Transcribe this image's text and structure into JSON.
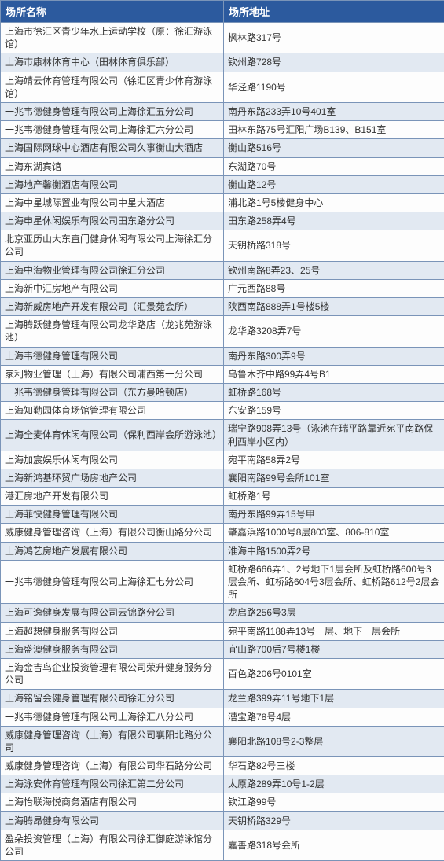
{
  "table": {
    "columns": [
      "场所名称",
      "场所地址"
    ],
    "rows": [
      [
        "上海市徐汇区青少年水上运动学校（原：徐汇游泳馆）",
        "枫林路317号"
      ],
      [
        "上海市康林体育中心（田林体育俱乐部）",
        "钦州路728号"
      ],
      [
        "上海靖云体育管理有限公司（徐汇区青少体育游泳馆）",
        "华泾路1190号"
      ],
      [
        "一兆韦德健身管理有限公司上海徐汇五分公司",
        "南丹东路233弄10号401室"
      ],
      [
        "一兆韦德健身管理有限公司上海徐汇六分公司",
        "田林东路75号汇阳广场B139、B151室"
      ],
      [
        "上海国际网球中心酒店有限公司久事衡山大酒店",
        "衡山路516号"
      ],
      [
        "上海东湖宾馆",
        "东湖路70号"
      ],
      [
        "上海地产馨衡酒店有限公司",
        "衡山路12号"
      ],
      [
        "上海中星城际置业有限公司中星大酒店",
        "浦北路1号5楼健身中心"
      ],
      [
        "上海申星休闲娱乐有限公司田东路分公司",
        "田东路258弄4号"
      ],
      [
        "北京亚历山大东直门健身休闲有限公司上海徐汇分公司",
        "天钥桥路318号"
      ],
      [
        "上海中海物业管理有限公司徐汇分公司",
        "钦州南路8弄23、25号"
      ],
      [
        "上海新中汇房地产有限公司",
        "广元西路88号"
      ],
      [
        "上海新威房地产开发有限公司（汇景苑会所）",
        "陕西南路888弄1号楼5楼"
      ],
      [
        "上海腾跃健身管理有限公司龙华路店（龙兆苑游泳池）",
        "龙华路3208弄7号"
      ],
      [
        "上海韦德健身管理有限公司",
        "南丹东路300弄9号"
      ],
      [
        "家利物业管理（上海）有限公司浦西第一分公司",
        "乌鲁木齐中路99弄4号B1"
      ],
      [
        "一兆韦德健身管理有限公司（东方曼哈顿店）",
        "虹桥路168号"
      ],
      [
        "上海知勤园体育场馆管理有限公司",
        "东安路159号"
      ],
      [
        "上海全麦体育休闲有限公司（保利西岸会所游泳池）",
        "瑞宁路908弄13号（泳池在瑞平路靠近宛平南路保利西岸小区内）"
      ],
      [
        "上海加宸娱乐休闲有限公司",
        "宛平南路58弄2号"
      ],
      [
        "上海新鸿基环贸广场房地产公司",
        "襄阳南路99号会所101室"
      ],
      [
        "港汇房地产开发有限公司",
        "虹桥路1号"
      ],
      [
        "上海菲快健身管理有限公司",
        "南丹东路99弄15号甲"
      ],
      [
        "威康健身管理咨询（上海）有限公司衡山路分公司",
        "肇嘉浜路1000号8层803室、806-810室"
      ],
      [
        "上海鸿艺房地产发展有限公司",
        "淮海中路1500弄2号"
      ],
      [
        "一兆韦德健身管理有限公司上海徐汇七分公司",
        "虹桥路666弄1、2号地下1层会所及虹桥路600号3层会所、虹桥路604号3层会所、虹桥路612号2层会所"
      ],
      [
        "上海可逸健身发展有限公司云锦路分公司",
        "龙启路256号3层"
      ],
      [
        "上海超想健身服务有限公司",
        "宛平南路1188弄13号一层、地下一层会所"
      ],
      [
        "上海盛澳健身服务有限公司",
        "宜山路700后7号楼1楼"
      ],
      [
        "上海金吉鸟企业投资管理有限公司荣升健身服务分公司",
        "百色路206号0101室"
      ],
      [
        "上海铭留会健身管理有限公司徐汇分公司",
        "龙兰路399弄11号地下1层"
      ],
      [
        "一兆韦德健身管理有限公司上海徐汇八分公司",
        "漕宝路78号4层"
      ],
      [
        "威康健身管理咨询（上海）有限公司襄阳北路分公司",
        "襄阳北路108号2-3整层"
      ],
      [
        "威康健身管理咨询（上海）有限公司华石路分公司",
        "华石路82号三楼"
      ],
      [
        "上海泳安体育管理有限公司徐汇第二分公司",
        "太原路289弄10号1-2层"
      ],
      [
        "上海怡联海悦商务酒店有限公司",
        "钦江路99号"
      ],
      [
        "上海腾昂健身有限公司",
        "天钥桥路329号"
      ],
      [
        "盈朵投资管理（上海）有限公司徐汇御庭游泳馆分公司",
        "嘉善路318号会所"
      ]
    ]
  }
}
